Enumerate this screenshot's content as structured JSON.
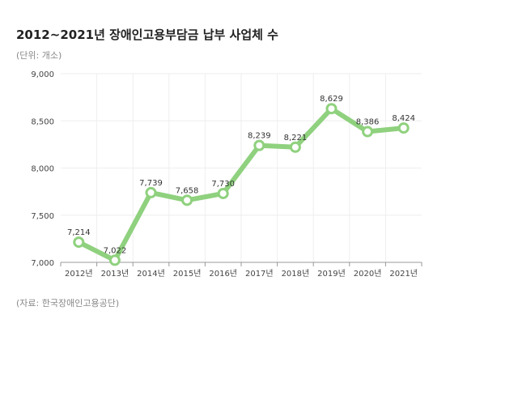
{
  "title": "2012~2021년 장애인고용부담금 납부 사업체 수",
  "unit_note": "(단위: 개소)",
  "source": "(자료: 한국장애인고용공단)",
  "colors": {
    "line": "#8fd17e",
    "marker_fill": "#ffffff",
    "grid": "#eeeeee",
    "axis": "#999999"
  },
  "chart_data": {
    "type": "line",
    "categories": [
      "2012년",
      "2013년",
      "2014년",
      "2015년",
      "2016년",
      "2017년",
      "2018년",
      "2019년",
      "2020년",
      "2021년"
    ],
    "series": [
      {
        "values": [
          7214,
          7022,
          7739,
          7658,
          7730,
          8239,
          8221,
          8629,
          8386,
          8424
        ]
      }
    ],
    "data_labels": [
      "7,214",
      "7,022",
      "7,739",
      "7,658",
      "7,730",
      "8,239",
      "8,221",
      "8,629",
      "8,386",
      "8,424"
    ],
    "ylim": [
      7000,
      9000
    ],
    "yticks": [
      7000,
      7500,
      8000,
      8500,
      9000
    ],
    "ytick_labels": [
      "7,000",
      "7,500",
      "8,000",
      "8,500",
      "9,000"
    ],
    "grid": true,
    "legend": "none"
  }
}
